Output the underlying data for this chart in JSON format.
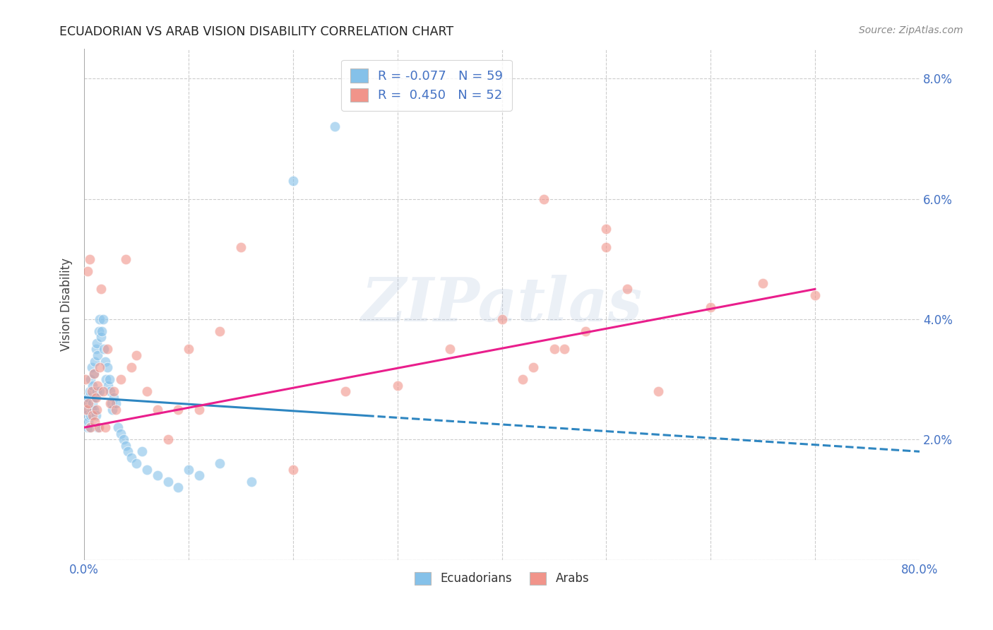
{
  "title": "ECUADORIAN VS ARAB VISION DISABILITY CORRELATION CHART",
  "source": "Source: ZipAtlas.com",
  "ylabel": "Vision Disability",
  "xlim": [
    0.0,
    0.8
  ],
  "ylim": [
    0.0,
    0.085
  ],
  "xticks": [
    0.0,
    0.1,
    0.2,
    0.3,
    0.4,
    0.5,
    0.6,
    0.7,
    0.8
  ],
  "xticklabels": [
    "0.0%",
    "",
    "",
    "",
    "",
    "",
    "",
    "",
    "80.0%"
  ],
  "yticks": [
    0.0,
    0.02,
    0.04,
    0.06,
    0.08
  ],
  "yticklabels_right": [
    "",
    "2.0%",
    "4.0%",
    "6.0%",
    "8.0%"
  ],
  "ecuadorians_R": "-0.077",
  "ecuadorians_N": "59",
  "arabs_R": "0.450",
  "arabs_N": "52",
  "blue_color": "#85c1e9",
  "pink_color": "#f1948a",
  "trend_blue": "#2e86c1",
  "trend_pink": "#e91e8c",
  "watermark": "ZIPatlas",
  "legend_label1": "Ecuadorians",
  "legend_label2": "Arabs",
  "ecuadorians_x": [
    0.001,
    0.002,
    0.003,
    0.003,
    0.004,
    0.004,
    0.005,
    0.005,
    0.006,
    0.006,
    0.007,
    0.007,
    0.008,
    0.008,
    0.009,
    0.009,
    0.01,
    0.01,
    0.011,
    0.011,
    0.012,
    0.012,
    0.013,
    0.013,
    0.014,
    0.015,
    0.015,
    0.016,
    0.017,
    0.018,
    0.019,
    0.02,
    0.021,
    0.022,
    0.023,
    0.024,
    0.025,
    0.026,
    0.027,
    0.028,
    0.03,
    0.032,
    0.035,
    0.038,
    0.04,
    0.042,
    0.045,
    0.05,
    0.055,
    0.06,
    0.07,
    0.08,
    0.09,
    0.1,
    0.11,
    0.13,
    0.16,
    0.2,
    0.24
  ],
  "ecuadorians_y": [
    0.026,
    0.024,
    0.025,
    0.022,
    0.027,
    0.023,
    0.028,
    0.022,
    0.03,
    0.024,
    0.032,
    0.025,
    0.029,
    0.026,
    0.031,
    0.025,
    0.033,
    0.027,
    0.035,
    0.024,
    0.036,
    0.028,
    0.034,
    0.022,
    0.038,
    0.04,
    0.028,
    0.037,
    0.038,
    0.04,
    0.035,
    0.033,
    0.03,
    0.032,
    0.029,
    0.03,
    0.028,
    0.026,
    0.025,
    0.027,
    0.026,
    0.022,
    0.021,
    0.02,
    0.019,
    0.018,
    0.017,
    0.016,
    0.018,
    0.015,
    0.014,
    0.013,
    0.012,
    0.015,
    0.014,
    0.016,
    0.013,
    0.063,
    0.072
  ],
  "arabs_x": [
    0.001,
    0.002,
    0.003,
    0.004,
    0.005,
    0.006,
    0.007,
    0.008,
    0.009,
    0.01,
    0.011,
    0.012,
    0.013,
    0.014,
    0.015,
    0.016,
    0.018,
    0.02,
    0.022,
    0.025,
    0.028,
    0.03,
    0.035,
    0.04,
    0.045,
    0.05,
    0.06,
    0.07,
    0.08,
    0.09,
    0.1,
    0.11,
    0.13,
    0.15,
    0.2,
    0.25,
    0.3,
    0.35,
    0.4,
    0.42,
    0.45,
    0.48,
    0.5,
    0.52,
    0.55,
    0.6,
    0.65,
    0.7,
    0.5,
    0.43,
    0.44,
    0.46
  ],
  "arabs_y": [
    0.03,
    0.025,
    0.048,
    0.026,
    0.05,
    0.022,
    0.028,
    0.024,
    0.031,
    0.023,
    0.027,
    0.025,
    0.029,
    0.022,
    0.032,
    0.045,
    0.028,
    0.022,
    0.035,
    0.026,
    0.028,
    0.025,
    0.03,
    0.05,
    0.032,
    0.034,
    0.028,
    0.025,
    0.02,
    0.025,
    0.035,
    0.025,
    0.038,
    0.052,
    0.015,
    0.028,
    0.029,
    0.035,
    0.04,
    0.03,
    0.035,
    0.038,
    0.052,
    0.045,
    0.028,
    0.042,
    0.046,
    0.044,
    0.055,
    0.032,
    0.06,
    0.035
  ]
}
